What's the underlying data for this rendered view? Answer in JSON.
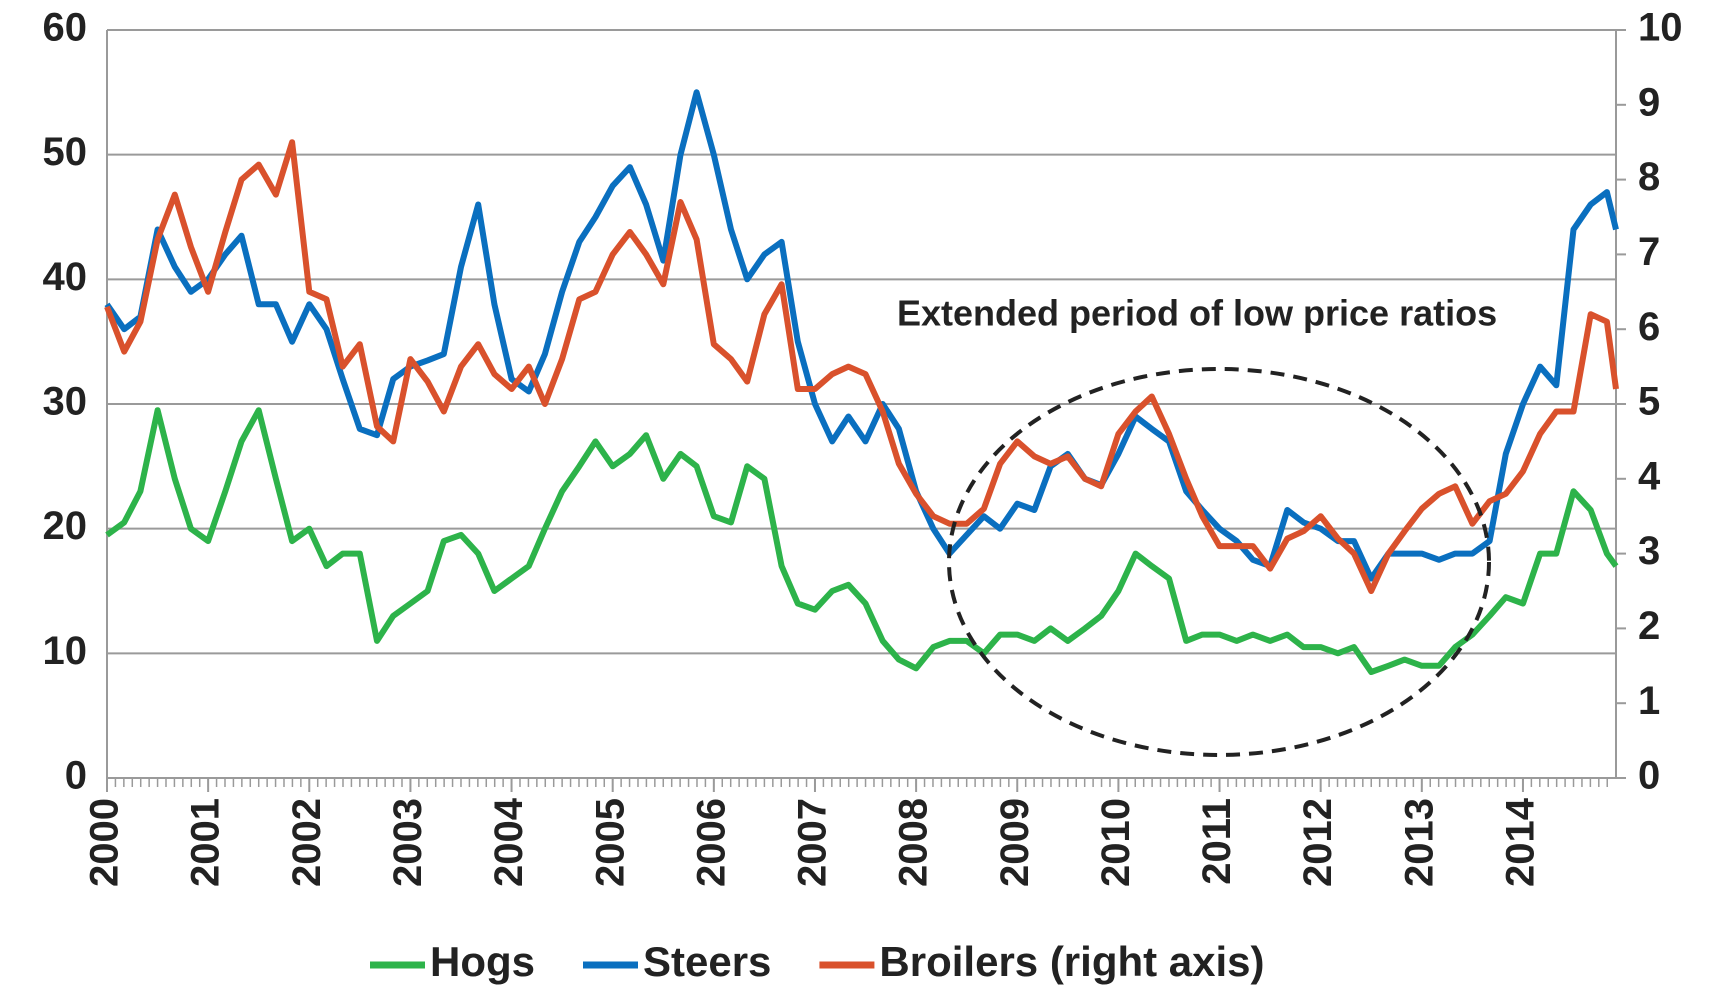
{
  "chart_data": {
    "type": "line",
    "annotation": "Extended period of low price ratios",
    "x": [
      2000,
      2000.17,
      2000.33,
      2000.5,
      2000.67,
      2000.83,
      2001,
      2001.17,
      2001.33,
      2001.5,
      2001.67,
      2001.83,
      2002,
      2002.17,
      2002.33,
      2002.5,
      2002.67,
      2002.83,
      2003,
      2003.17,
      2003.33,
      2003.5,
      2003.67,
      2003.83,
      2004,
      2004.17,
      2004.33,
      2004.5,
      2004.67,
      2004.83,
      2005,
      2005.17,
      2005.33,
      2005.5,
      2005.67,
      2005.83,
      2006,
      2006.17,
      2006.33,
      2006.5,
      2006.67,
      2006.83,
      2007,
      2007.17,
      2007.33,
      2007.5,
      2007.67,
      2007.83,
      2008,
      2008.17,
      2008.33,
      2008.5,
      2008.67,
      2008.83,
      2009,
      2009.17,
      2009.33,
      2009.5,
      2009.67,
      2009.83,
      2010,
      2010.17,
      2010.33,
      2010.5,
      2010.67,
      2010.83,
      2011,
      2011.17,
      2011.33,
      2011.5,
      2011.67,
      2011.83,
      2012,
      2012.17,
      2012.33,
      2012.5,
      2012.67,
      2012.83,
      2013,
      2013.17,
      2013.33,
      2013.5,
      2013.67,
      2013.83,
      2014,
      2014.17,
      2014.33,
      2014.5,
      2014.67,
      2014.83,
      2014.92
    ],
    "series": [
      {
        "name": "Hogs",
        "color": "#2db34a",
        "values": [
          19.5,
          20.5,
          23,
          29.5,
          24,
          20,
          19,
          23,
          27,
          29.5,
          24,
          19,
          20,
          17,
          18,
          18,
          11,
          13,
          14,
          15,
          19,
          19.5,
          18,
          15,
          16,
          17,
          20,
          23,
          25,
          27,
          25,
          26,
          27.5,
          24,
          26,
          25,
          21,
          20.5,
          25,
          24,
          17,
          14,
          13.5,
          15,
          15.5,
          14,
          11,
          9.5,
          8.8,
          10.5,
          11,
          11,
          10,
          11.5,
          11.5,
          11,
          12,
          11,
          12,
          13,
          15,
          18,
          17,
          16,
          11,
          11.5,
          11.5,
          11,
          11.5,
          11,
          11.5,
          10.5,
          10.5,
          10,
          10.5,
          8.5,
          9,
          9.5,
          9,
          9,
          10.5,
          11.5,
          13,
          14.5,
          14,
          18,
          18,
          23,
          21.5,
          18,
          17
        ]
      },
      {
        "name": "Steers",
        "color": "#0a6fbf",
        "values": [
          38,
          36,
          37,
          44,
          41,
          39,
          40,
          42,
          43.5,
          38,
          38,
          35,
          38,
          36,
          32,
          28,
          27.5,
          32,
          33,
          33.5,
          34,
          41,
          46,
          38,
          32,
          31,
          34,
          39,
          43,
          45,
          47.5,
          49,
          46,
          41.5,
          50,
          55,
          50,
          44,
          40,
          42,
          43,
          35,
          30,
          27,
          29,
          27,
          30,
          28,
          23,
          20,
          18,
          19.5,
          21,
          20,
          22,
          21.5,
          25,
          26,
          24,
          23.5,
          26,
          29,
          28,
          27,
          23,
          21.5,
          20,
          19,
          17.5,
          17,
          21.5,
          20.5,
          20,
          19,
          19,
          16,
          18,
          18,
          18,
          17.5,
          18,
          18,
          19,
          26,
          30,
          33,
          31.5,
          44,
          46,
          47,
          44
        ]
      },
      {
        "name": "Broilers (right axis)",
        "color": "#d9512c",
        "axis": "y2",
        "values": [
          6.3,
          5.7,
          6.1,
          7.2,
          7.8,
          7.1,
          6.5,
          7.3,
          8.0,
          8.2,
          7.8,
          8.5,
          6.5,
          6.4,
          5.5,
          5.8,
          4.7,
          4.5,
          5.6,
          5.3,
          4.9,
          5.5,
          5.8,
          5.4,
          5.2,
          5.5,
          5.0,
          5.6,
          6.4,
          6.5,
          7.0,
          7.3,
          7.0,
          6.6,
          7.7,
          7.2,
          5.8,
          5.6,
          5.3,
          6.2,
          6.6,
          5.2,
          5.2,
          5.4,
          5.5,
          5.4,
          4.9,
          4.2,
          3.8,
          3.5,
          3.4,
          3.4,
          3.6,
          4.2,
          4.5,
          4.3,
          4.2,
          4.3,
          4.0,
          3.9,
          4.6,
          4.9,
          5.1,
          4.6,
          4.0,
          3.5,
          3.1,
          3.1,
          3.1,
          2.8,
          3.2,
          3.3,
          3.5,
          3.2,
          3.0,
          2.5,
          3.0,
          3.3,
          3.6,
          3.8,
          3.9,
          3.4,
          3.7,
          3.8,
          4.1,
          4.6,
          4.9,
          4.9,
          6.2,
          6.1,
          5.2
        ]
      }
    ],
    "xlim": [
      2000,
      2014.92
    ],
    "xticks": [
      2000,
      2001,
      2002,
      2003,
      2004,
      2005,
      2006,
      2007,
      2008,
      2009,
      2010,
      2011,
      2012,
      2013,
      2014
    ],
    "ylim": [
      0,
      60
    ],
    "yticks": [
      0,
      10,
      20,
      30,
      40,
      50,
      60
    ],
    "y2lim": [
      0,
      10
    ],
    "y2ticks": [
      0,
      1,
      2,
      3,
      4,
      5,
      6,
      7,
      8,
      9,
      10
    ],
    "grid": true,
    "legend": "bottom"
  }
}
